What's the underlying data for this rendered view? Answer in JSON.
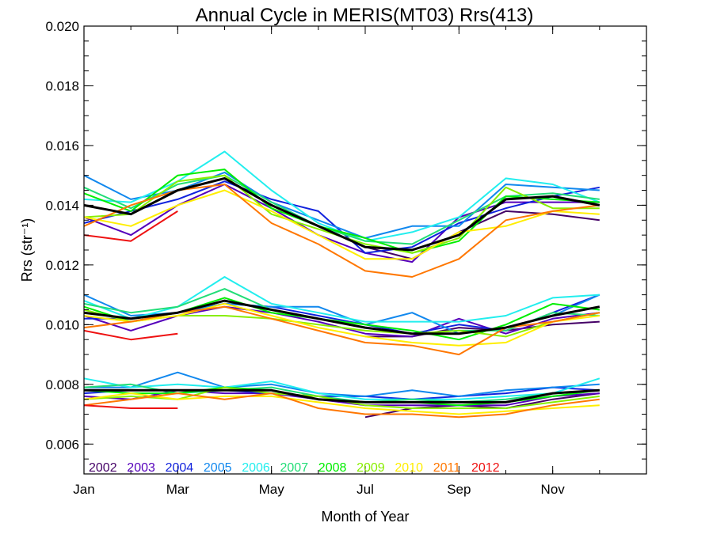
{
  "chart_data": {
    "type": "line",
    "title": "Annual Cycle in MERIS(MT03) Rrs(413)",
    "xlabel": "Month of Year",
    "ylabel": "Rrs (str⁻¹)",
    "xlim": [
      1,
      13
    ],
    "ylim": [
      0.005,
      0.02
    ],
    "x": [
      1,
      2,
      3,
      4,
      5,
      6,
      7,
      8,
      9,
      10,
      11,
      12
    ],
    "x_ticks": [
      {
        "x": 1,
        "label": "Jan"
      },
      {
        "x": 3,
        "label": "Mar"
      },
      {
        "x": 5,
        "label": "May"
      },
      {
        "x": 7,
        "label": "Jul"
      },
      {
        "x": 9,
        "label": "Sep"
      },
      {
        "x": 11,
        "label": "Nov"
      }
    ],
    "y_ticks": [
      {
        "y": 0.006,
        "label": "0.006"
      },
      {
        "y": 0.008,
        "label": "0.008"
      },
      {
        "y": 0.01,
        "label": "0.010"
      },
      {
        "y": 0.012,
        "label": "0.012"
      },
      {
        "y": 0.014,
        "label": "0.014"
      },
      {
        "y": 0.016,
        "label": "0.016"
      },
      {
        "y": 0.018,
        "label": "0.018"
      },
      {
        "y": 0.02,
        "label": "0.020"
      }
    ],
    "legend_position": "bottom-left",
    "grid": false,
    "series": [
      {
        "name": "2002",
        "color": "#440066",
        "groups": [
          [
            null,
            null,
            null,
            null,
            null,
            null,
            0.0126,
            0.0122,
            0.0131,
            0.0138,
            0.0137,
            0.0135
          ],
          [
            null,
            null,
            null,
            null,
            null,
            null,
            0.0096,
            0.0096,
            0.0099,
            0.0098,
            0.01,
            0.0101
          ],
          [
            null,
            null,
            null,
            null,
            null,
            null,
            0.0069,
            0.0072,
            0.0073,
            0.0072,
            0.0075,
            0.0077
          ]
        ]
      },
      {
        "name": "2003",
        "color": "#5500bb",
        "groups": [
          [
            0.0136,
            0.013,
            0.014,
            0.0147,
            0.0139,
            0.013,
            0.0124,
            0.0121,
            0.0136,
            0.0141,
            0.0141,
            0.0141
          ],
          [
            0.0103,
            0.0098,
            0.0103,
            0.0106,
            0.0104,
            0.0101,
            0.0097,
            0.0096,
            0.0102,
            0.0097,
            0.0102,
            0.0104
          ],
          [
            0.0076,
            0.0075,
            0.0078,
            0.0077,
            0.0077,
            0.0075,
            0.0073,
            0.0073,
            0.0073,
            0.0073,
            0.0076,
            0.0077
          ]
        ]
      },
      {
        "name": "2004",
        "color": "#1122dd",
        "groups": [
          [
            0.0134,
            0.0138,
            0.0142,
            0.0148,
            0.0142,
            0.0138,
            0.0124,
            0.0126,
            0.0134,
            0.0139,
            0.0143,
            0.0146
          ],
          [
            0.0102,
            0.0102,
            0.0104,
            0.0107,
            0.0106,
            0.0103,
            0.01,
            0.0097,
            0.01,
            0.0098,
            0.0104,
            0.011
          ],
          [
            0.0077,
            0.0078,
            0.0078,
            0.0078,
            0.0077,
            0.0076,
            0.0076,
            0.0075,
            0.0076,
            0.0077,
            0.0079,
            0.0078
          ]
        ]
      },
      {
        "name": "2005",
        "color": "#1188ee",
        "groups": [
          [
            0.015,
            0.0142,
            0.0145,
            0.0151,
            0.0141,
            0.0135,
            0.0129,
            0.0133,
            0.0133,
            0.0147,
            0.0146,
            0.0145
          ],
          [
            0.011,
            0.0103,
            0.0104,
            0.0107,
            0.0106,
            0.0106,
            0.01,
            0.0104,
            0.0097,
            0.0099,
            0.0103,
            0.011
          ],
          [
            0.0079,
            0.0079,
            0.0084,
            0.0079,
            0.008,
            0.0077,
            0.0076,
            0.0078,
            0.0076,
            0.0078,
            0.0079,
            0.008
          ]
        ]
      },
      {
        "name": "2006",
        "color": "#22eeee",
        "groups": [
          [
            0.0142,
            0.0141,
            0.0148,
            0.0158,
            0.0145,
            0.0134,
            0.0128,
            0.0131,
            0.0136,
            0.0149,
            0.0147,
            0.0141
          ],
          [
            0.0108,
            0.0102,
            0.0106,
            0.0116,
            0.0107,
            0.0104,
            0.0101,
            0.0101,
            0.0101,
            0.0103,
            0.0109,
            0.011
          ],
          [
            0.0082,
            0.0079,
            0.008,
            0.0079,
            0.0081,
            0.0077,
            0.0075,
            0.0075,
            0.0075,
            0.0076,
            0.0077,
            0.0082
          ]
        ]
      },
      {
        "name": "2007",
        "color": "#22dd77",
        "groups": [
          [
            0.0146,
            0.0139,
            0.0147,
            0.015,
            0.0141,
            0.0133,
            0.0128,
            0.0127,
            0.0135,
            0.0143,
            0.0144,
            0.0142
          ],
          [
            0.0107,
            0.0104,
            0.0106,
            0.0112,
            0.0105,
            0.0102,
            0.0099,
            0.0097,
            0.0098,
            0.0098,
            0.0104,
            0.0103
          ],
          [
            0.0079,
            0.008,
            0.0077,
            0.0078,
            0.0079,
            0.0076,
            0.0074,
            0.0075,
            0.0074,
            0.0075,
            0.0077,
            0.0078
          ]
        ]
      },
      {
        "name": "2008",
        "color": "#00ee00",
        "groups": [
          [
            0.0144,
            0.0138,
            0.015,
            0.0152,
            0.0139,
            0.0133,
            0.0129,
            0.0124,
            0.0128,
            0.0143,
            0.0142,
            0.0141
          ],
          [
            0.0106,
            0.0101,
            0.0104,
            0.0109,
            0.0104,
            0.0102,
            0.01,
            0.0098,
            0.0095,
            0.01,
            0.0107,
            0.0105
          ],
          [
            0.0078,
            0.0077,
            0.0077,
            0.0079,
            0.0078,
            0.0075,
            0.0074,
            0.0074,
            0.0073,
            0.0074,
            0.0076,
            0.0078
          ]
        ]
      },
      {
        "name": "2009",
        "color": "#88ee00",
        "groups": [
          [
            0.0136,
            0.0137,
            0.0148,
            0.015,
            0.0137,
            0.0132,
            0.0127,
            0.0124,
            0.0129,
            0.0146,
            0.0139,
            0.0139
          ],
          [
            0.0105,
            0.0101,
            0.0103,
            0.0103,
            0.0102,
            0.01,
            0.0098,
            0.0097,
            0.0098,
            0.0096,
            0.0101,
            0.0104
          ],
          [
            0.0075,
            0.0076,
            0.0075,
            0.0079,
            0.0077,
            0.0076,
            0.0073,
            0.0072,
            0.0072,
            0.0072,
            0.0074,
            0.0076
          ]
        ]
      },
      {
        "name": "2010",
        "color": "#ffee00",
        "groups": [
          [
            0.0136,
            0.0133,
            0.014,
            0.0145,
            0.0138,
            0.013,
            0.0122,
            0.0122,
            0.0131,
            0.0133,
            0.0138,
            0.0137
          ],
          [
            0.0103,
            0.0101,
            0.0103,
            0.0107,
            0.0103,
            0.0099,
            0.0096,
            0.0094,
            0.0093,
            0.0094,
            0.0101,
            0.0103
          ],
          [
            0.0075,
            0.0077,
            0.0075,
            0.0076,
            0.0076,
            0.0074,
            0.0072,
            0.0071,
            0.007,
            0.0071,
            0.0072,
            0.0073
          ]
        ]
      },
      {
        "name": "2011",
        "color": "#ff7700",
        "groups": [
          [
            0.0133,
            0.014,
            0.0145,
            0.0147,
            0.0134,
            0.0127,
            0.0118,
            0.0116,
            0.0122,
            0.0135,
            0.0138,
            0.014
          ],
          [
            0.0099,
            0.0101,
            0.0104,
            0.0106,
            0.0102,
            0.0098,
            0.0094,
            0.0093,
            0.009,
            0.0099,
            0.0101,
            0.0104
          ],
          [
            0.0073,
            0.0075,
            0.0077,
            0.0075,
            0.0077,
            0.0072,
            0.007,
            0.007,
            0.0069,
            0.007,
            0.0073,
            0.0075
          ]
        ]
      },
      {
        "name": "2012",
        "color": "#ee1111",
        "groups": [
          [
            0.013,
            0.0128,
            0.0138,
            null,
            null,
            null,
            null,
            null,
            null,
            null,
            null,
            null
          ],
          [
            0.0098,
            0.0095,
            0.0097,
            null,
            null,
            null,
            null,
            null,
            null,
            null,
            null,
            null
          ],
          [
            0.0073,
            0.0072,
            0.0072,
            null,
            null,
            null,
            null,
            null,
            null,
            null,
            null,
            null
          ]
        ]
      },
      {
        "name": "",
        "color": "#000000",
        "groups": [
          [
            0.014,
            0.0137,
            0.0145,
            0.0149,
            0.014,
            0.0133,
            0.0126,
            0.0125,
            0.013,
            0.0142,
            0.0143,
            0.014
          ],
          [
            0.0104,
            0.0102,
            0.0104,
            0.0108,
            0.0105,
            0.0102,
            0.0099,
            0.0097,
            0.0097,
            0.0099,
            0.0103,
            0.0106
          ],
          [
            0.0078,
            0.0078,
            0.0078,
            0.0078,
            0.0078,
            0.0075,
            0.0074,
            0.0074,
            0.0074,
            0.0074,
            0.0077,
            0.0078
          ]
        ]
      }
    ]
  }
}
